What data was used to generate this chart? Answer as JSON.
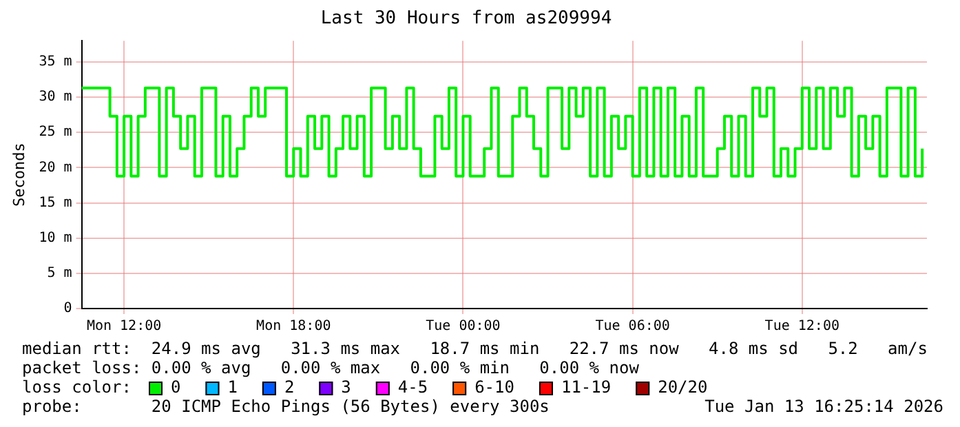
{
  "chart_data": {
    "type": "step",
    "title": "Last 30 Hours from as209994",
    "ylabel": "Seconds",
    "xlim": [
      "2026-01-12T10:30",
      "2026-01-13T16:25"
    ],
    "xticks": [
      {
        "value": "2026-01-12T12:00",
        "label": "Mon 12:00"
      },
      {
        "value": "2026-01-12T18:00",
        "label": "Mon 18:00"
      },
      {
        "value": "2026-01-13T00:00",
        "label": "Tue 00:00"
      },
      {
        "value": "2026-01-13T06:00",
        "label": "Tue 06:00"
      },
      {
        "value": "2026-01-13T12:00",
        "label": "Tue 12:00"
      }
    ],
    "ylim": [
      0,
      38
    ],
    "yticks": [
      0,
      {
        "value": 5,
        "label": "5 m"
      },
      {
        "value": 10,
        "label": "10 m"
      },
      {
        "value": 15,
        "label": "15 m"
      },
      {
        "value": 20,
        "label": "20 m"
      },
      {
        "value": 25,
        "label": "25 m"
      },
      {
        "value": 30,
        "label": "30 m"
      },
      {
        "value": 35,
        "label": "35 m"
      }
    ],
    "grid": true,
    "legend": "bottom",
    "legend_title": "loss color:",
    "x": [
      "2026-01-12T10:30",
      "2026-01-12T10:45",
      "2026-01-12T11:00",
      "2026-01-12T11:15",
      "2026-01-12T11:30",
      "2026-01-12T11:45",
      "2026-01-12T12:00",
      "2026-01-12T12:15",
      "2026-01-12T12:30",
      "2026-01-12T12:45",
      "2026-01-12T13:00",
      "2026-01-12T13:15",
      "2026-01-12T13:30",
      "2026-01-12T13:45",
      "2026-01-12T14:00",
      "2026-01-12T14:15",
      "2026-01-12T14:30",
      "2026-01-12T14:45",
      "2026-01-12T15:00",
      "2026-01-12T15:15",
      "2026-01-12T15:30",
      "2026-01-12T15:45",
      "2026-01-12T16:00",
      "2026-01-12T16:15",
      "2026-01-12T16:30",
      "2026-01-12T16:45",
      "2026-01-12T17:00",
      "2026-01-12T17:15",
      "2026-01-12T17:30",
      "2026-01-12T17:45",
      "2026-01-12T18:00",
      "2026-01-12T18:15",
      "2026-01-12T18:30",
      "2026-01-12T18:45",
      "2026-01-12T19:00",
      "2026-01-12T19:15",
      "2026-01-12T19:30",
      "2026-01-12T19:45",
      "2026-01-12T20:00",
      "2026-01-12T20:15",
      "2026-01-12T20:30",
      "2026-01-12T20:45",
      "2026-01-12T21:00",
      "2026-01-12T21:15",
      "2026-01-12T21:30",
      "2026-01-12T21:45",
      "2026-01-12T22:00",
      "2026-01-12T22:15",
      "2026-01-12T22:30",
      "2026-01-12T22:45",
      "2026-01-12T23:00",
      "2026-01-12T23:15",
      "2026-01-12T23:30",
      "2026-01-12T23:45",
      "2026-01-13T00:00",
      "2026-01-13T00:15",
      "2026-01-13T00:30",
      "2026-01-13T00:45",
      "2026-01-13T01:00",
      "2026-01-13T01:15",
      "2026-01-13T01:30",
      "2026-01-13T01:45",
      "2026-01-13T02:00",
      "2026-01-13T02:15",
      "2026-01-13T02:30",
      "2026-01-13T02:45",
      "2026-01-13T03:00",
      "2026-01-13T03:15",
      "2026-01-13T03:30",
      "2026-01-13T03:45",
      "2026-01-13T04:00",
      "2026-01-13T04:15",
      "2026-01-13T04:30",
      "2026-01-13T04:45",
      "2026-01-13T05:00",
      "2026-01-13T05:15",
      "2026-01-13T05:30",
      "2026-01-13T05:45",
      "2026-01-13T06:00",
      "2026-01-13T06:15",
      "2026-01-13T06:30",
      "2026-01-13T06:45",
      "2026-01-13T07:00",
      "2026-01-13T07:15",
      "2026-01-13T07:30",
      "2026-01-13T07:45",
      "2026-01-13T08:00",
      "2026-01-13T08:15",
      "2026-01-13T08:30",
      "2026-01-13T08:45",
      "2026-01-13T09:00",
      "2026-01-13T09:15",
      "2026-01-13T09:30",
      "2026-01-13T09:45",
      "2026-01-13T10:00",
      "2026-01-13T10:15",
      "2026-01-13T10:30",
      "2026-01-13T10:45",
      "2026-01-13T11:00",
      "2026-01-13T11:15",
      "2026-01-13T11:30",
      "2026-01-13T11:45",
      "2026-01-13T12:00",
      "2026-01-13T12:15",
      "2026-01-13T12:30",
      "2026-01-13T12:45",
      "2026-01-13T13:00",
      "2026-01-13T13:15",
      "2026-01-13T13:30",
      "2026-01-13T13:45",
      "2026-01-13T14:00",
      "2026-01-13T14:15",
      "2026-01-13T14:30",
      "2026-01-13T14:45",
      "2026-01-13T15:00",
      "2026-01-13T15:15",
      "2026-01-13T15:30",
      "2026-01-13T15:45",
      "2026-01-13T16:00",
      "2026-01-13T16:15"
    ],
    "series": [
      {
        "name": "0",
        "color": "#00ee00",
        "values": [
          31.3,
          31.3,
          31.3,
          31.3,
          27.3,
          18.8,
          27.3,
          18.8,
          27.3,
          31.3,
          31.3,
          18.8,
          31.3,
          27.3,
          22.7,
          27.3,
          18.8,
          31.3,
          31.3,
          18.8,
          27.3,
          18.8,
          22.7,
          27.3,
          31.3,
          27.3,
          31.3,
          31.3,
          31.3,
          18.8,
          22.7,
          18.8,
          27.3,
          22.7,
          27.3,
          18.8,
          22.7,
          27.3,
          22.7,
          27.3,
          18.8,
          31.3,
          31.3,
          22.7,
          27.3,
          22.7,
          31.3,
          22.7,
          18.8,
          18.8,
          27.3,
          22.7,
          31.3,
          18.8,
          27.3,
          18.8,
          18.8,
          22.7,
          31.3,
          18.8,
          18.8,
          27.3,
          31.3,
          27.3,
          22.7,
          18.8,
          31.3,
          31.3,
          22.7,
          31.3,
          27.3,
          31.3,
          18.8,
          31.3,
          18.8,
          27.3,
          22.7,
          27.3,
          18.8,
          31.3,
          18.8,
          31.3,
          18.8,
          31.3,
          18.8,
          27.3,
          18.8,
          31.3,
          18.8,
          18.8,
          22.7,
          27.3,
          18.8,
          27.3,
          18.8,
          31.3,
          27.3,
          31.3,
          18.8,
          22.7,
          18.8,
          22.7,
          31.3,
          22.7,
          31.3,
          22.7,
          31.3,
          27.3,
          31.3,
          18.8,
          27.3,
          22.7,
          27.3,
          18.8,
          31.3,
          31.3,
          18.8,
          31.3,
          18.8,
          22.7
        ]
      },
      {
        "name": "1",
        "color": "#00b8ff",
        "values": [
          null,
          null,
          null,
          null,
          null,
          null,
          null,
          null,
          null,
          null,
          null,
          null,
          null,
          null,
          null,
          null,
          null,
          null,
          null,
          null,
          null,
          null,
          null,
          null,
          null,
          null,
          null,
          null,
          null,
          null,
          null,
          null,
          null,
          null,
          null,
          null,
          null,
          null,
          null,
          null,
          null,
          null,
          null,
          null,
          null,
          null,
          null,
          null,
          null,
          null,
          null,
          null,
          null,
          null,
          null,
          null,
          null,
          null,
          null,
          null,
          null,
          null,
          null,
          null,
          null,
          null,
          null,
          null,
          null,
          null,
          null,
          null,
          null,
          null,
          null,
          null,
          null,
          null,
          null,
          null,
          null,
          null,
          null,
          null,
          null,
          null,
          null,
          null,
          null,
          null,
          null,
          null,
          null,
          null,
          null,
          null,
          null,
          null,
          null,
          null,
          null,
          null,
          null,
          null,
          null,
          null,
          null,
          null,
          null,
          null,
          null,
          null,
          null,
          null,
          null,
          null,
          null,
          null,
          null,
          null
        ]
      },
      {
        "name": "2",
        "color": "#0059ff",
        "values": [
          null,
          null,
          null,
          null,
          null,
          null,
          null,
          null,
          null,
          null,
          null,
          null,
          null,
          null,
          null,
          null,
          null,
          null,
          null,
          null,
          null,
          null,
          null,
          null,
          null,
          null,
          null,
          null,
          null,
          null,
          null,
          null,
          null,
          null,
          null,
          null,
          null,
          null,
          null,
          null,
          null,
          null,
          null,
          null,
          null,
          null,
          null,
          null,
          null,
          null,
          null,
          null,
          null,
          null,
          null,
          null,
          null,
          null,
          null,
          null,
          null,
          null,
          null,
          null,
          null,
          null,
          null,
          null,
          null,
          null,
          null,
          null,
          null,
          null,
          null,
          null,
          null,
          null,
          null,
          null,
          null,
          null,
          null,
          null,
          null,
          null,
          null,
          null,
          null,
          null,
          null,
          null,
          null,
          null,
          null,
          null,
          null,
          null,
          null,
          null,
          null,
          null,
          null,
          null,
          null,
          null,
          null,
          null,
          null,
          null,
          null,
          null,
          null,
          null,
          null,
          null,
          null,
          null,
          null,
          null
        ]
      },
      {
        "name": "3",
        "color": "#7e00ff",
        "values": [
          null,
          null,
          null,
          null,
          null,
          null,
          null,
          null,
          null,
          null,
          null,
          null,
          null,
          null,
          null,
          null,
          null,
          null,
          null,
          null,
          null,
          null,
          null,
          null,
          null,
          null,
          null,
          null,
          null,
          null,
          null,
          null,
          null,
          null,
          null,
          null,
          null,
          null,
          null,
          null,
          null,
          null,
          null,
          null,
          null,
          null,
          null,
          null,
          null,
          null,
          null,
          null,
          null,
          null,
          null,
          null,
          null,
          null,
          null,
          null,
          null,
          null,
          null,
          null,
          null,
          null,
          null,
          null,
          null,
          null,
          null,
          null,
          null,
          null,
          null,
          null,
          null,
          null,
          null,
          null,
          null,
          null,
          null,
          null,
          null,
          null,
          null,
          null,
          null,
          null,
          null,
          null,
          null,
          null,
          null,
          null,
          null,
          null,
          null,
          null,
          null,
          null,
          null,
          null,
          null,
          null,
          null,
          null,
          null,
          null,
          null,
          null,
          null,
          null,
          null,
          null,
          null,
          null,
          null,
          null
        ]
      },
      {
        "name": "4-5",
        "color": "#ff00ff",
        "values": [
          null,
          null,
          null,
          null,
          null,
          null,
          null,
          null,
          null,
          null,
          null,
          null,
          null,
          null,
          null,
          null,
          null,
          null,
          null,
          null,
          null,
          null,
          null,
          null,
          null,
          null,
          null,
          null,
          null,
          null,
          null,
          null,
          null,
          null,
          null,
          null,
          null,
          null,
          null,
          null,
          null,
          null,
          null,
          null,
          null,
          null,
          null,
          null,
          null,
          null,
          null,
          null,
          null,
          null,
          null,
          null,
          null,
          null,
          null,
          null,
          null,
          null,
          null,
          null,
          null,
          null,
          null,
          null,
          null,
          null,
          null,
          null,
          null,
          null,
          null,
          null,
          null,
          null,
          null,
          null,
          null,
          null,
          null,
          null,
          null,
          null,
          null,
          null,
          null,
          null,
          null,
          null,
          null,
          null,
          null,
          null,
          null,
          null,
          null,
          null,
          null,
          null,
          null,
          null,
          null,
          null,
          null,
          null,
          null,
          null,
          null,
          null,
          null,
          null,
          null,
          null,
          null,
          null,
          null,
          null
        ]
      },
      {
        "name": "6-10",
        "color": "#ff5500",
        "values": [
          null,
          null,
          null,
          null,
          null,
          null,
          null,
          null,
          null,
          null,
          null,
          null,
          null,
          null,
          null,
          null,
          null,
          null,
          null,
          null,
          null,
          null,
          null,
          null,
          null,
          null,
          null,
          null,
          null,
          null,
          null,
          null,
          null,
          null,
          null,
          null,
          null,
          null,
          null,
          null,
          null,
          null,
          null,
          null,
          null,
          null,
          null,
          null,
          null,
          null,
          null,
          null,
          null,
          null,
          null,
          null,
          null,
          null,
          null,
          null,
          null,
          null,
          null,
          null,
          null,
          null,
          null,
          null,
          null,
          null,
          null,
          null,
          null,
          null,
          null,
          null,
          null,
          null,
          null,
          null,
          null,
          null,
          null,
          null,
          null,
          null,
          null,
          null,
          null,
          null,
          null,
          null,
          null,
          null,
          null,
          null,
          null,
          null,
          null,
          null,
          null,
          null,
          null,
          null,
          null,
          null,
          null,
          null,
          null,
          null,
          null,
          null,
          null,
          null,
          null,
          null,
          null,
          null,
          null,
          null
        ]
      },
      {
        "name": "11-19",
        "color": "#ff0000",
        "values": [
          null,
          null,
          null,
          null,
          null,
          null,
          null,
          null,
          null,
          null,
          null,
          null,
          null,
          null,
          null,
          null,
          null,
          null,
          null,
          null,
          null,
          null,
          null,
          null,
          null,
          null,
          null,
          null,
          null,
          null,
          null,
          null,
          null,
          null,
          null,
          null,
          null,
          null,
          null,
          null,
          null,
          null,
          null,
          null,
          null,
          null,
          null,
          null,
          null,
          null,
          null,
          null,
          null,
          null,
          null,
          null,
          null,
          null,
          null,
          null,
          null,
          null,
          null,
          null,
          null,
          null,
          null,
          null,
          null,
          null,
          null,
          null,
          null,
          null,
          null,
          null,
          null,
          null,
          null,
          null,
          null,
          null,
          null,
          null,
          null,
          null,
          null,
          null,
          null,
          null,
          null,
          null,
          null,
          null,
          null,
          null,
          null,
          null,
          null,
          null,
          null,
          null,
          null,
          null,
          null,
          null,
          null,
          null,
          null,
          null,
          null,
          null,
          null,
          null,
          null,
          null,
          null,
          null,
          null,
          null
        ]
      },
      {
        "name": "20/20",
        "color": "#a10000",
        "values": [
          null,
          null,
          null,
          null,
          null,
          null,
          null,
          null,
          null,
          null,
          null,
          null,
          null,
          null,
          null,
          null,
          null,
          null,
          null,
          null,
          null,
          null,
          null,
          null,
          null,
          null,
          null,
          null,
          null,
          null,
          null,
          null,
          null,
          null,
          null,
          null,
          null,
          null,
          null,
          null,
          null,
          null,
          null,
          null,
          null,
          null,
          null,
          null,
          null,
          null,
          null,
          null,
          null,
          null,
          null,
          null,
          null,
          null,
          null,
          null,
          null,
          null,
          null,
          null,
          null,
          null,
          null,
          null,
          null,
          null,
          null,
          null,
          null,
          null,
          null,
          null,
          null,
          null,
          null,
          null,
          null,
          null,
          null,
          null,
          null,
          null,
          null,
          null,
          null,
          null,
          null,
          null,
          null,
          null,
          null,
          null,
          null,
          null,
          null,
          null,
          null,
          null,
          null,
          null,
          null,
          null,
          null,
          null,
          null,
          null,
          null,
          null,
          null,
          null,
          null,
          null,
          null,
          null,
          null,
          null
        ]
      }
    ],
    "annotations": [
      "median rtt:  24.9 ms avg   31.3 ms max   18.7 ms min   22.7 ms now   4.8 ms sd   5.2   am/s",
      "packet loss: 0.00 % avg   0.00 % max   0.00 % min   0.00 % now",
      "probe:       20 ICMP Echo Pings (56 Bytes) every 300s",
      "Tue Jan 13 16:25:14 2026"
    ]
  }
}
